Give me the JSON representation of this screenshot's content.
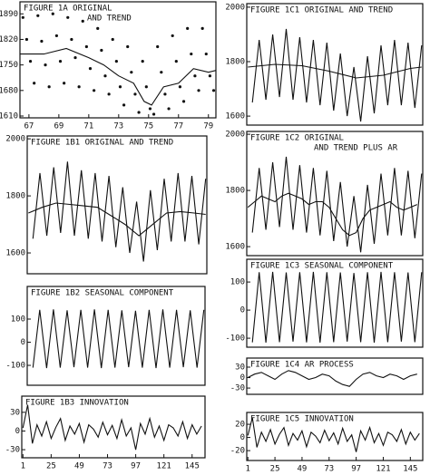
{
  "chart_data": [
    {
      "type": "scatter",
      "title": [
        "FIGURE 1A   ORIGINAL",
        "AND TREND"
      ],
      "xlim": [
        66.4,
        79.5
      ],
      "xticks": [
        67,
        69,
        71,
        73,
        75,
        77,
        79
      ],
      "ylim": [
        1605,
        1923
      ],
      "yticks": [
        1890,
        1820,
        1750,
        1680,
        1610
      ],
      "series": [
        {
          "type": "scatter",
          "color": "#111111",
          "x": [
            66.6,
            66.85,
            67.1,
            67.35,
            67.6,
            67.85,
            68.1,
            68.35,
            68.6,
            68.85,
            69.1,
            69.35,
            69.6,
            69.85,
            70.1,
            70.35,
            70.6,
            70.85,
            71.1,
            71.35,
            71.6,
            71.85,
            72.1,
            72.35,
            72.6,
            72.85,
            73.1,
            73.35,
            73.6,
            73.85,
            74.1,
            74.35,
            74.6,
            74.85,
            75.1,
            75.35,
            75.6,
            75.85,
            76.1,
            76.35,
            76.6,
            76.85,
            77.1,
            77.35,
            77.6,
            77.85,
            78.1,
            78.35,
            78.6,
            78.85,
            79.1,
            79.35
          ],
          "values": [
            1880,
            1820,
            1760,
            1700,
            1885,
            1815,
            1750,
            1690,
            1890,
            1830,
            1760,
            1700,
            1880,
            1820,
            1770,
            1690,
            1870,
            1800,
            1740,
            1680,
            1850,
            1790,
            1720,
            1670,
            1820,
            1760,
            1690,
            1640,
            1800,
            1730,
            1670,
            1620,
            1760,
            1690,
            1630,
            1615,
            1800,
            1730,
            1670,
            1630,
            1830,
            1760,
            1690,
            1650,
            1850,
            1780,
            1720,
            1680,
            1850,
            1780,
            1720,
            1680
          ]
        },
        {
          "type": "line",
          "color": "#111111",
          "x": [
            66.4,
            68,
            69.5,
            71,
            72,
            73,
            74,
            74.7,
            75.2,
            76,
            77,
            78,
            79,
            79.5
          ],
          "values": [
            1780,
            1780,
            1795,
            1770,
            1750,
            1720,
            1700,
            1650,
            1640,
            1690,
            1700,
            1740,
            1730,
            1735
          ]
        }
      ]
    },
    {
      "type": "line",
      "title": [
        "FIGURE 1B1   ORIGINAL AND TREND"
      ],
      "xlim": [
        0,
        156
      ],
      "ylim": [
        1527,
        2010
      ],
      "yticks": [
        2000,
        1800,
        1600
      ],
      "series": [
        {
          "type": "line",
          "color": "#111111",
          "x": [
            5,
            11,
            17,
            23,
            29,
            35,
            41,
            47,
            53,
            59,
            65,
            71,
            77,
            83,
            89,
            95,
            101,
            107,
            113,
            119,
            125,
            131,
            137,
            143,
            149,
            155
          ],
          "values": [
            1650,
            1880,
            1660,
            1900,
            1670,
            1920,
            1660,
            1890,
            1650,
            1880,
            1640,
            1870,
            1620,
            1830,
            1600,
            1780,
            1570,
            1820,
            1610,
            1860,
            1640,
            1880,
            1640,
            1870,
            1630,
            1860
          ]
        },
        {
          "type": "line",
          "color": "#111111",
          "x": [
            1,
            13,
            25,
            37,
            49,
            61,
            73,
            85,
            97,
            109,
            121,
            133,
            145,
            155
          ],
          "values": [
            1740,
            1760,
            1775,
            1770,
            1765,
            1760,
            1730,
            1700,
            1660,
            1700,
            1740,
            1745,
            1740,
            1735
          ]
        }
      ]
    },
    {
      "type": "line",
      "title": [
        "FIGURE 1B2   SEASONAL COMPONENT"
      ],
      "xlim": [
        0,
        156
      ],
      "ylim": [
        -186,
        241
      ],
      "yticks": [
        100,
        0,
        -100
      ],
      "series": [
        {
          "type": "line",
          "color": "#111111",
          "x": [
            5,
            11,
            17,
            23,
            29,
            35,
            41,
            47,
            53,
            59,
            65,
            71,
            77,
            83,
            89,
            95,
            101,
            107,
            113,
            119,
            125,
            131,
            137,
            143,
            149,
            155
          ],
          "values": [
            -110,
            140,
            -112,
            142,
            -110,
            138,
            -108,
            140,
            -110,
            142,
            -112,
            140,
            -110,
            138,
            -108,
            136,
            -110,
            140,
            -112,
            142,
            -110,
            140,
            -108,
            138,
            -110,
            140
          ]
        }
      ]
    },
    {
      "type": "line",
      "title": [
        "FIGURE 1B3   INNOVATION"
      ],
      "xlim": [
        0,
        156
      ],
      "ylim": [
        -43,
        56
      ],
      "yticks": [
        30,
        0,
        -30
      ],
      "xticks": [
        1,
        25,
        49,
        73,
        97,
        121,
        145
      ],
      "series": [
        {
          "type": "line",
          "color": "#111111",
          "x": [
            1,
            5,
            9,
            13,
            17,
            21,
            25,
            29,
            33,
            37,
            41,
            45,
            49,
            53,
            57,
            61,
            65,
            69,
            73,
            77,
            81,
            85,
            89,
            93,
            97,
            101,
            105,
            109,
            113,
            117,
            121,
            125,
            129,
            133,
            137,
            141,
            145,
            149,
            153
          ],
          "values": [
            5,
            42,
            -20,
            10,
            -8,
            15,
            -12,
            6,
            20,
            -15,
            8,
            -5,
            12,
            -18,
            10,
            3,
            -10,
            14,
            -6,
            9,
            -12,
            18,
            -8,
            5,
            -30,
            12,
            -5,
            20,
            -10,
            8,
            -15,
            10,
            5,
            -8,
            15,
            -12,
            10,
            -5,
            8
          ]
        }
      ]
    },
    {
      "type": "line",
      "title": [
        "FIGURE 1C1   ORIGINAL AND TREND"
      ],
      "xlim": [
        0,
        156
      ],
      "ylim": [
        1567,
        2013
      ],
      "yticks": [
        2000,
        1800,
        1600
      ],
      "series": [
        {
          "type": "line",
          "color": "#111111",
          "x": [
            5,
            11,
            17,
            23,
            29,
            35,
            41,
            47,
            53,
            59,
            65,
            71,
            77,
            83,
            89,
            95,
            101,
            107,
            113,
            119,
            125,
            131,
            137,
            143,
            149,
            155
          ],
          "values": [
            1650,
            1880,
            1660,
            1900,
            1670,
            1920,
            1660,
            1890,
            1650,
            1880,
            1640,
            1870,
            1620,
            1830,
            1600,
            1780,
            1580,
            1820,
            1610,
            1860,
            1640,
            1880,
            1640,
            1870,
            1630,
            1860
          ]
        },
        {
          "type": "line",
          "color": "#111111",
          "x": [
            1,
            25,
            49,
            73,
            97,
            121,
            145,
            155
          ],
          "values": [
            1780,
            1790,
            1785,
            1765,
            1740,
            1750,
            1775,
            1780
          ]
        }
      ]
    },
    {
      "type": "line",
      "title": [
        "FIGURE 1C2   ORIGINAL",
        "AND TREND PLUS AR"
      ],
      "xlim": [
        0,
        156
      ],
      "ylim": [
        1568,
        2010
      ],
      "yticks": [
        2000,
        1800,
        1600
      ],
      "series": [
        {
          "type": "line",
          "color": "#111111",
          "x": [
            5,
            11,
            17,
            23,
            29,
            35,
            41,
            47,
            53,
            59,
            65,
            71,
            77,
            83,
            89,
            95,
            101,
            107,
            113,
            119,
            125,
            131,
            137,
            143,
            149,
            155
          ],
          "values": [
            1650,
            1880,
            1660,
            1900,
            1670,
            1920,
            1660,
            1890,
            1650,
            1880,
            1640,
            1870,
            1620,
            1830,
            1600,
            1780,
            1580,
            1820,
            1610,
            1860,
            1640,
            1880,
            1640,
            1870,
            1630,
            1860
          ]
        },
        {
          "type": "line",
          "color": "#111111",
          "x": [
            1,
            7,
            13,
            19,
            25,
            31,
            37,
            43,
            49,
            55,
            61,
            67,
            73,
            79,
            85,
            91,
            97,
            103,
            109,
            115,
            121,
            127,
            133,
            139,
            145,
            151
          ],
          "values": [
            1740,
            1760,
            1780,
            1770,
            1760,
            1780,
            1790,
            1780,
            1770,
            1750,
            1760,
            1760,
            1740,
            1700,
            1660,
            1640,
            1650,
            1700,
            1730,
            1740,
            1750,
            1760,
            1740,
            1730,
            1740,
            1750
          ]
        }
      ]
    },
    {
      "type": "line",
      "title": [
        "FIGURE 1C3   SEASONAL COMPONENT"
      ],
      "xlim": [
        0,
        156
      ],
      "ylim": [
        -132,
        181
      ],
      "yticks": [
        100,
        0,
        -100
      ],
      "series": [
        {
          "type": "line",
          "color": "#111111",
          "x": [
            5,
            11,
            17,
            23,
            29,
            35,
            41,
            47,
            53,
            59,
            65,
            71,
            77,
            83,
            89,
            95,
            101,
            107,
            113,
            119,
            125,
            131,
            137,
            143,
            149,
            155
          ],
          "values": [
            -115,
            135,
            -116,
            136,
            -114,
            134,
            -112,
            135,
            -115,
            136,
            -116,
            135,
            -114,
            134,
            -112,
            132,
            -114,
            135,
            -116,
            136,
            -114,
            135,
            -112,
            134,
            -114,
            135
          ]
        }
      ]
    },
    {
      "type": "line",
      "title": [
        "FIGURE 1C4   AR PROCESS"
      ],
      "xlim": [
        0,
        156
      ],
      "ylim": [
        -48,
        56
      ],
      "yticks": [
        30,
        0,
        -30
      ],
      "series": [
        {
          "type": "line",
          "color": "#111111",
          "x": [
            1,
            7,
            13,
            19,
            25,
            31,
            37,
            43,
            49,
            55,
            61,
            67,
            73,
            79,
            85,
            91,
            97,
            103,
            109,
            115,
            121,
            127,
            133,
            139,
            145,
            151
          ],
          "values": [
            0,
            10,
            15,
            5,
            -5,
            10,
            20,
            15,
            5,
            -5,
            0,
            10,
            5,
            -10,
            -20,
            -25,
            -5,
            10,
            15,
            5,
            0,
            10,
            5,
            -5,
            5,
            10
          ]
        }
      ]
    },
    {
      "type": "line",
      "title": [
        "FIGURE 1C5   INNOVATION"
      ],
      "xlim": [
        0,
        156
      ],
      "ylim": [
        -35,
        38
      ],
      "yticks": [
        20,
        0,
        -20
      ],
      "xticks": [
        1,
        25,
        49,
        73,
        97,
        121,
        145
      ],
      "series": [
        {
          "type": "line",
          "color": "#111111",
          "x": [
            1,
            5,
            9,
            13,
            17,
            21,
            25,
            29,
            33,
            37,
            41,
            45,
            49,
            53,
            57,
            61,
            65,
            69,
            73,
            77,
            81,
            85,
            89,
            93,
            97,
            101,
            105,
            109,
            113,
            117,
            121,
            125,
            129,
            133,
            137,
            141,
            145,
            149,
            153
          ],
          "values": [
            3,
            30,
            -15,
            8,
            -6,
            12,
            -10,
            5,
            15,
            -12,
            6,
            -4,
            10,
            -14,
            8,
            2,
            -8,
            11,
            -5,
            7,
            -10,
            14,
            -6,
            4,
            -22,
            10,
            -4,
            15,
            -8,
            6,
            -12,
            8,
            4,
            -6,
            12,
            -10,
            8,
            -4,
            6
          ]
        }
      ]
    }
  ]
}
